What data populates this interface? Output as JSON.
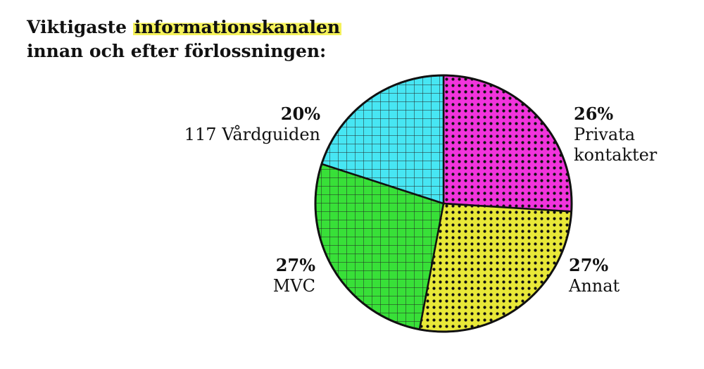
{
  "title": {
    "line1_before": "Viktigaste ",
    "line1_highlight": "informationskanalen",
    "line2": "innan och efter förlossningen:"
  },
  "colors": {
    "highlight": "#f5f25a",
    "ink": "#111111"
  },
  "chart_data": {
    "type": "pie",
    "title": "Viktigaste informationskanalen innan och efter förlossningen:",
    "slices": [
      {
        "label_lines": [
          "Privata",
          "kontakter"
        ],
        "value": 26,
        "value_label": "26%",
        "color": "#f01ed8",
        "pattern": "dots"
      },
      {
        "label_lines": [
          "Annat"
        ],
        "value": 27,
        "value_label": "27%",
        "color": "#e6e622",
        "pattern": "dots"
      },
      {
        "label_lines": [
          "MVC"
        ],
        "value": 27,
        "value_label": "27%",
        "color": "#22dd22",
        "pattern": "grid"
      },
      {
        "label_lines": [
          "117 Vårdguiden"
        ],
        "value": 20,
        "value_label": "20%",
        "color": "#33e3f2",
        "pattern": "grid"
      }
    ]
  }
}
